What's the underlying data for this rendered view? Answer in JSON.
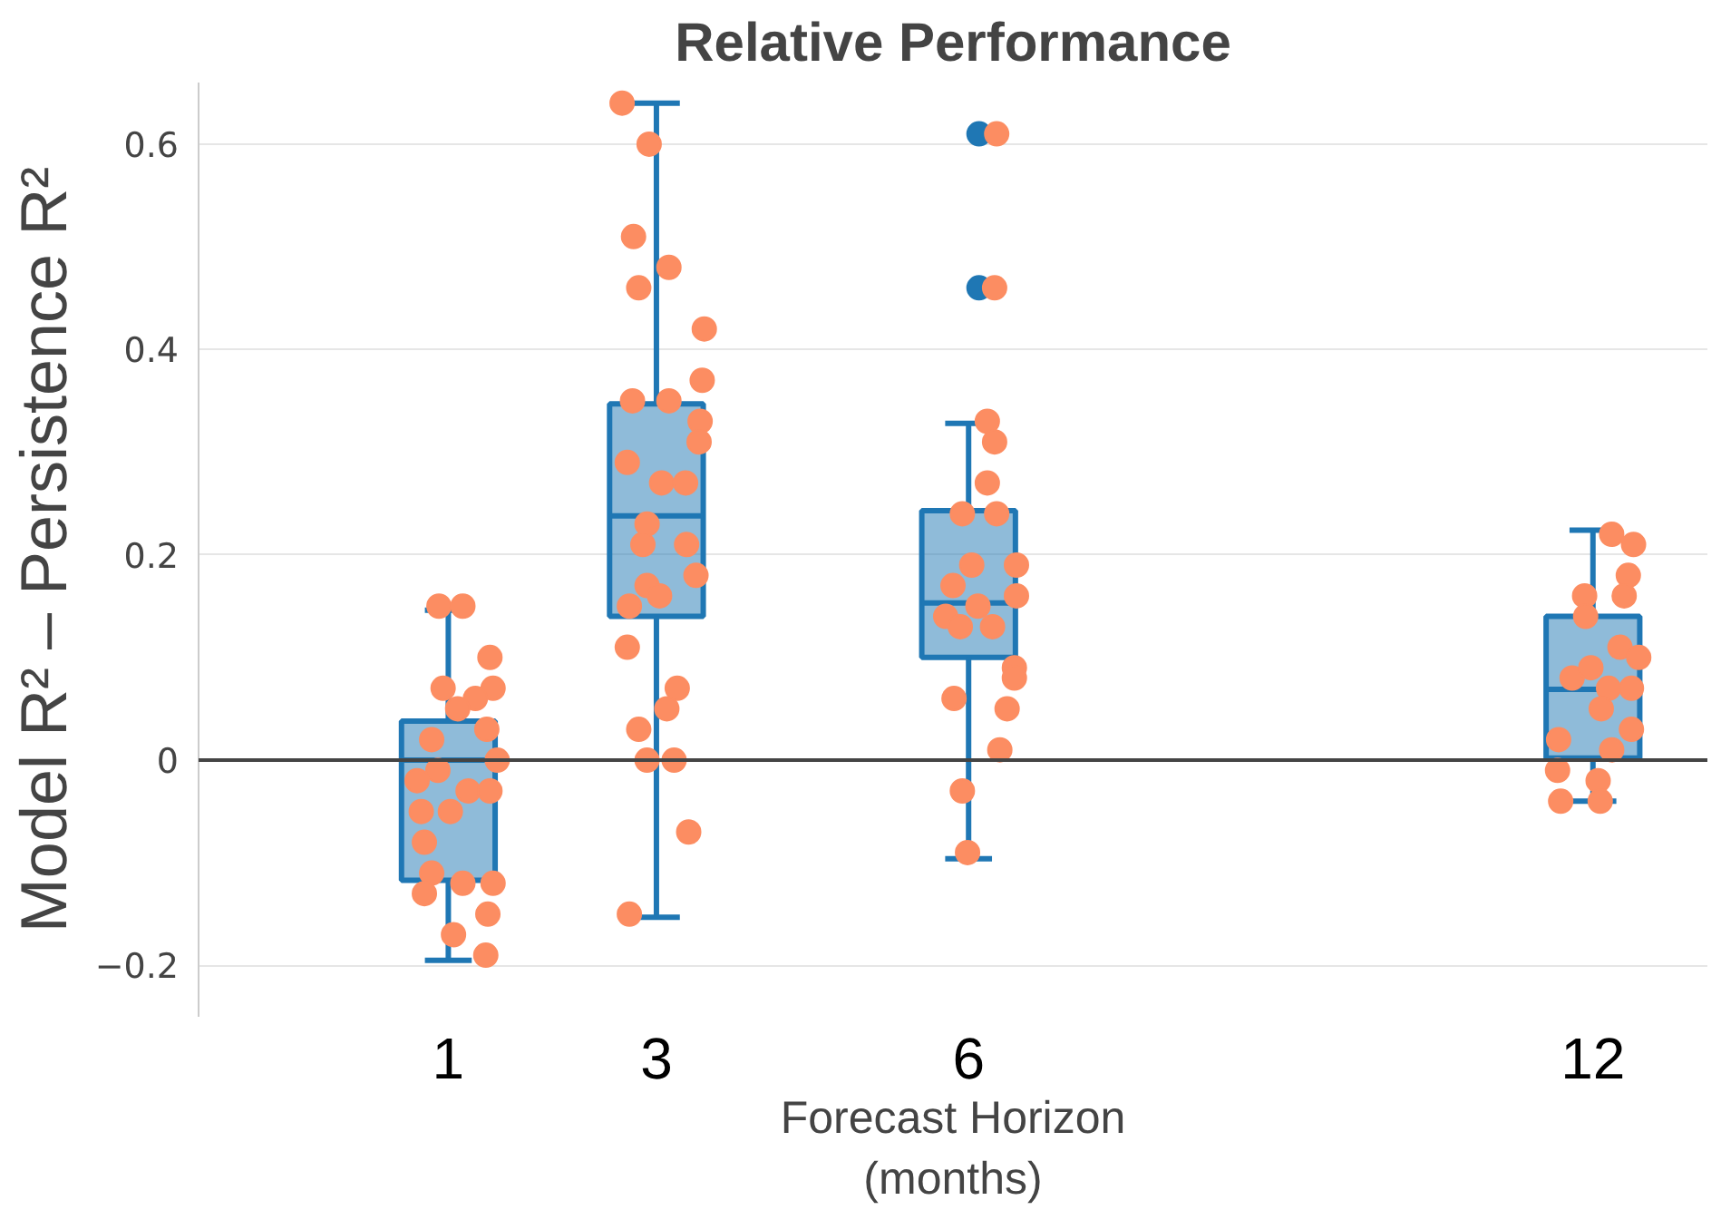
{
  "chart_data": {
    "type": "box",
    "title": "Relative Performance",
    "xlabel": "Forecast Horizon\n(months)",
    "ylabel": "Model R² – Persistence R²",
    "xlim": [
      -1.4,
      13.1
    ],
    "xticks": [
      1,
      3,
      6,
      12
    ],
    "ylim": [
      -0.25,
      0.66
    ],
    "yticks": [
      {
        "value": -0.2,
        "label": "−0.2"
      },
      0,
      0.2,
      0.4,
      0.6
    ],
    "grid": "y",
    "marker": "circle",
    "ref_lines": [
      {
        "axis": "y",
        "value": 0,
        "color": "#444444"
      }
    ],
    "series": [
      {
        "color": "#1f77b4",
        "x": [
          1,
          3,
          6,
          12
        ],
        "boxes": [
          {
            "low": -0.195,
            "q1": -0.117,
            "median": 0.0,
            "q3": 0.038,
            "high": 0.146
          },
          {
            "low": -0.153,
            "q1": 0.14,
            "median": 0.238,
            "q3": 0.347,
            "high": 0.64
          },
          {
            "low": -0.096,
            "q1": 0.1,
            "median": 0.153,
            "q3": 0.243,
            "high": 0.328,
            "outliers": [
              0.61,
              0.46
            ]
          },
          {
            "low": -0.04,
            "q1": 0.002,
            "median": 0.069,
            "q3": 0.14,
            "high": 0.224
          }
        ]
      },
      {
        "type": "scatter",
        "color": "#fc8d62",
        "x": [
          0.91,
          1.14,
          1.4,
          0.95,
          1.43,
          1.26,
          1.09,
          0.84,
          1.37,
          1.47,
          0.9,
          0.7,
          1.19,
          1.4,
          0.74,
          1.02,
          0.77,
          0.84,
          0.77,
          1.14,
          1.43,
          1.38,
          1.05,
          1.36,
          2.67,
          2.93,
          2.78,
          2.83,
          3.12,
          3.46,
          3.44,
          2.77,
          3.12,
          3.42,
          3.41,
          2.72,
          3.05,
          3.28,
          2.91,
          2.87,
          3.29,
          3.38,
          2.91,
          3.03,
          2.74,
          2.72,
          3.2,
          3.1,
          2.83,
          2.91,
          3.17,
          3.31,
          2.74,
          6.27,
          6.25,
          6.18,
          6.25,
          6.18,
          6.27,
          5.94,
          6.46,
          6.03,
          5.85,
          6.09,
          6.46,
          5.78,
          5.92,
          6.23,
          6.44,
          6.44,
          5.86,
          6.37,
          6.3,
          5.94,
          5.99,
          12.18,
          12.39,
          12.34,
          11.92,
          12.3,
          11.93,
          12.26,
          12.44,
          11.8,
          11.98,
          12.15,
          12.37,
          12.08,
          12.37,
          11.67,
          12.18,
          11.66,
          12.05,
          11.69,
          12.07
        ],
        "values": [
          0.15,
          0.15,
          0.1,
          0.07,
          0.07,
          0.06,
          0.05,
          0.02,
          0.03,
          0.0,
          -0.01,
          -0.02,
          -0.03,
          -0.03,
          -0.05,
          -0.05,
          -0.08,
          -0.11,
          -0.13,
          -0.12,
          -0.12,
          -0.15,
          -0.17,
          -0.19,
          0.64,
          0.6,
          0.51,
          0.46,
          0.48,
          0.42,
          0.37,
          0.35,
          0.35,
          0.33,
          0.31,
          0.29,
          0.27,
          0.27,
          0.23,
          0.21,
          0.21,
          0.18,
          0.17,
          0.16,
          0.15,
          0.11,
          0.07,
          0.05,
          0.03,
          0.0,
          0.0,
          -0.07,
          -0.15,
          0.61,
          0.46,
          0.33,
          0.31,
          0.27,
          0.24,
          0.24,
          0.19,
          0.19,
          0.17,
          0.15,
          0.16,
          0.14,
          0.13,
          0.13,
          0.09,
          0.08,
          0.06,
          0.05,
          0.01,
          -0.03,
          -0.09,
          0.22,
          0.21,
          0.18,
          0.16,
          0.16,
          0.14,
          0.11,
          0.1,
          0.08,
          0.09,
          0.07,
          0.07,
          0.05,
          0.03,
          0.02,
          0.01,
          -0.01,
          -0.02,
          -0.04,
          -0.04
        ]
      }
    ]
  }
}
